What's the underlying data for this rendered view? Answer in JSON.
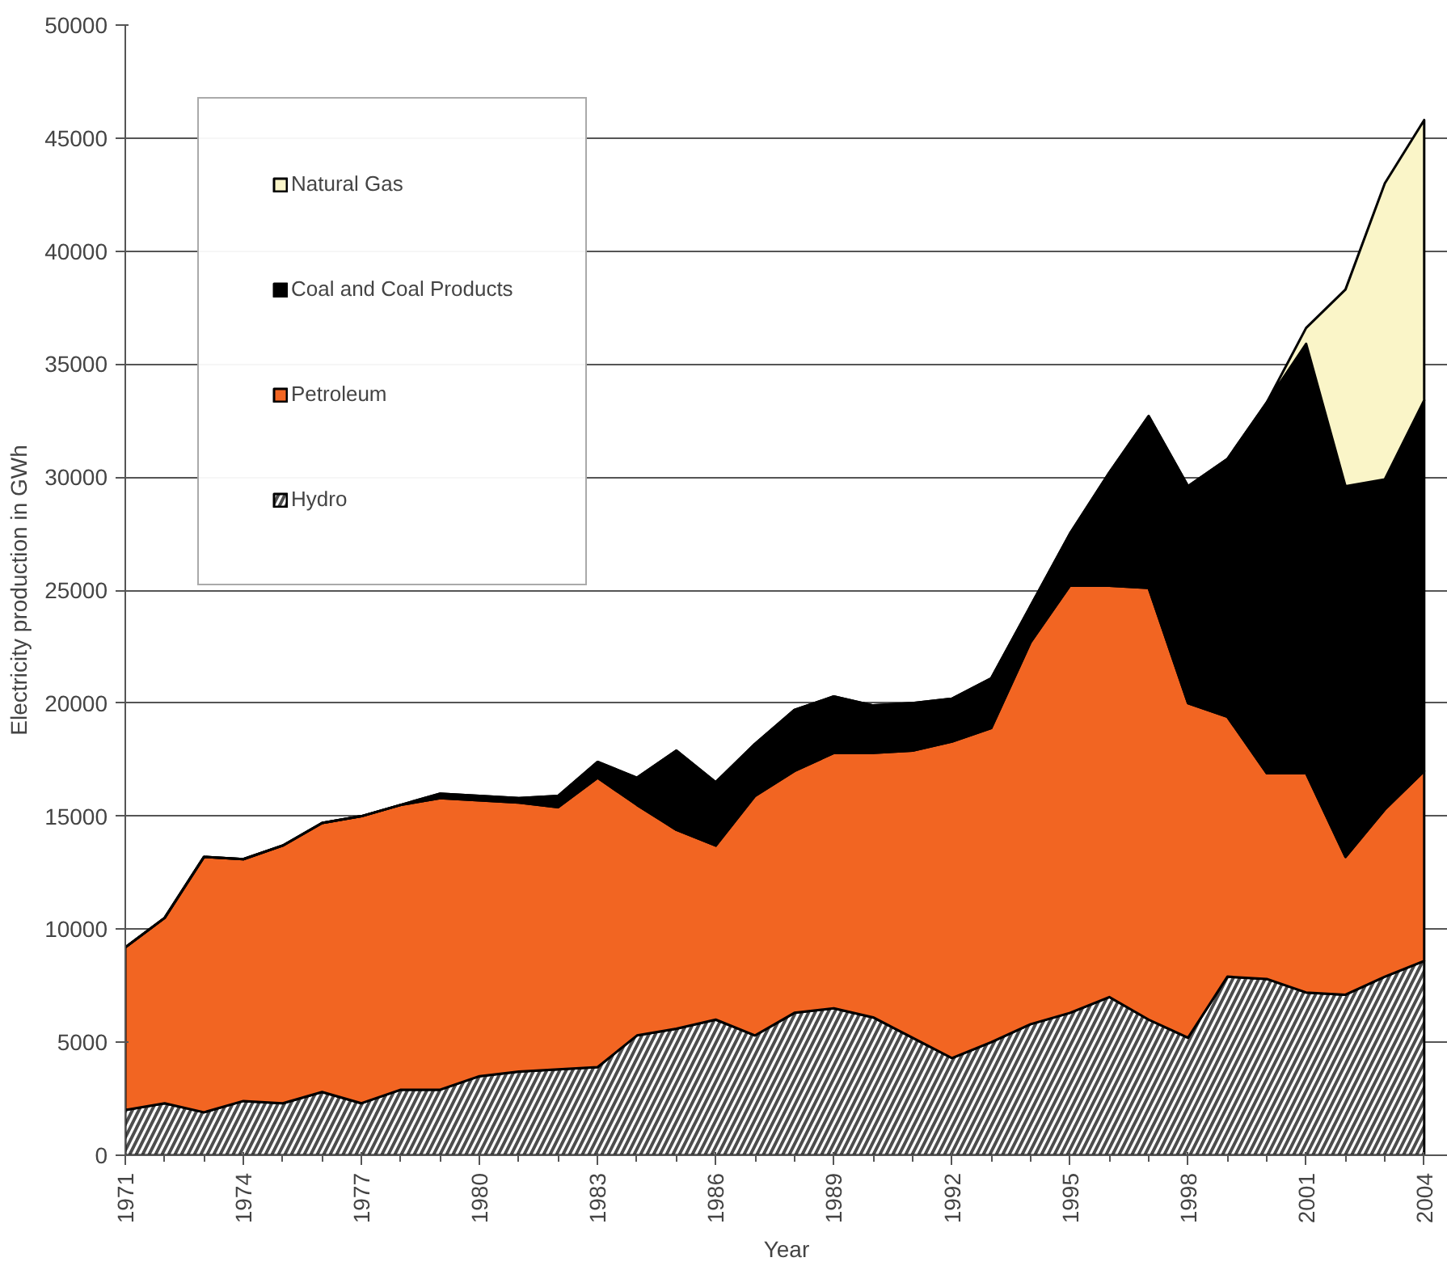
{
  "chart_data": {
    "type": "area",
    "stacked": true,
    "xlabel": "Year",
    "ylabel": "Electricity production in GWh",
    "x": [
      1971,
      1972,
      1973,
      1974,
      1975,
      1976,
      1977,
      1978,
      1979,
      1980,
      1981,
      1982,
      1983,
      1984,
      1985,
      1986,
      1987,
      1988,
      1989,
      1990,
      1991,
      1992,
      1993,
      1994,
      1995,
      1996,
      1997,
      1998,
      1999,
      2000,
      2001,
      2002,
      2003,
      2004
    ],
    "xlim": [
      1971,
      2004.6
    ],
    "xticks": [
      1971,
      1974,
      1977,
      1980,
      1983,
      1986,
      1989,
      1992,
      1995,
      1998,
      2001,
      2004
    ],
    "ylim": [
      0,
      50000
    ],
    "yticks": [
      0,
      5000,
      10000,
      15000,
      20000,
      25000,
      30000,
      35000,
      40000,
      45000,
      50000
    ],
    "grid": "y",
    "legend": "top left",
    "series": [
      {
        "name": "Hydro",
        "color": "#4d4d4d",
        "values": [
          2000,
          2300,
          1900,
          2400,
          2300,
          2800,
          2300,
          2900,
          2900,
          3500,
          3700,
          3800,
          3900,
          5300,
          5600,
          6000,
          5300,
          6300,
          6500,
          6100,
          5200,
          4300,
          5000,
          5800,
          6300,
          7000,
          6000,
          5200,
          7900,
          7800,
          7200,
          7100,
          7900,
          8600
        ]
      },
      {
        "name": "Petroleum",
        "color": "#f26522",
        "values": [
          7200,
          8200,
          11300,
          10700,
          11400,
          11900,
          12700,
          12600,
          12900,
          12200,
          11900,
          11600,
          12800,
          10200,
          8800,
          7700,
          10600,
          10700,
          11300,
          11700,
          12700,
          14000,
          13900,
          16900,
          18900,
          18200,
          19100,
          14800,
          11500,
          9100,
          9700,
          6100,
          7400,
          8400
        ]
      },
      {
        "name": "Coal and Coal Products",
        "color": "#000000",
        "values": [
          0,
          0,
          0,
          0,
          0,
          0,
          0,
          0,
          200,
          200,
          200,
          500,
          700,
          1200,
          3500,
          2800,
          2300,
          2700,
          2500,
          2100,
          2100,
          1900,
          2200,
          1600,
          2300,
          5000,
          7600,
          9600,
          11400,
          16400,
          19000,
          16400,
          14600,
          16400
        ]
      },
      {
        "name": "Natural Gas",
        "color": "#faf5c8",
        "values": [
          0,
          0,
          0,
          0,
          0,
          0,
          0,
          0,
          0,
          0,
          0,
          0,
          0,
          0,
          0,
          0,
          0,
          0,
          0,
          0,
          0,
          0,
          0,
          0,
          0,
          0,
          0,
          0,
          0,
          0,
          700,
          8700,
          13100,
          12400
        ]
      }
    ]
  }
}
